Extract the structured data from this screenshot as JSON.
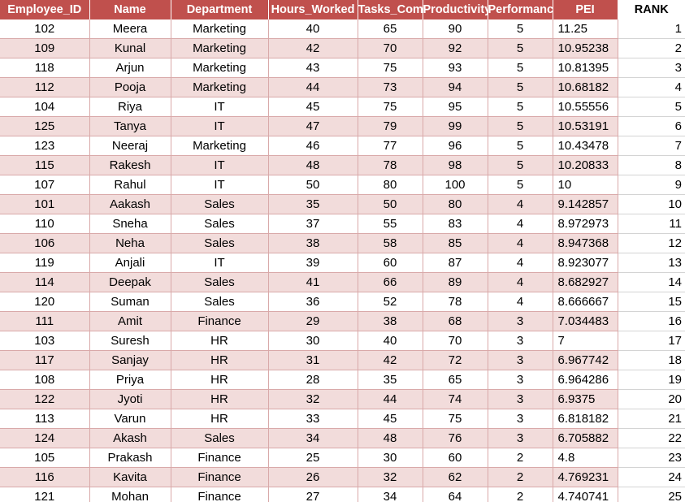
{
  "colors": {
    "header_bg": "#c0504d",
    "band_row": "#f2dcdb",
    "plain_row": "#ffffff"
  },
  "headers": [
    "Employee_ID",
    "Name",
    "Department",
    "Hours_Worked",
    "Tasks_Completed",
    "Productivity_Score",
    "Performance_Rating",
    "PEI",
    "RANK"
  ],
  "rows": [
    [
      "102",
      "Meera",
      "Marketing",
      "40",
      "65",
      "90",
      "5",
      "11.25",
      "1"
    ],
    [
      "109",
      "Kunal",
      "Marketing",
      "42",
      "70",
      "92",
      "5",
      "10.95238",
      "2"
    ],
    [
      "118",
      "Arjun",
      "Marketing",
      "43",
      "75",
      "93",
      "5",
      "10.81395",
      "3"
    ],
    [
      "112",
      "Pooja",
      "Marketing",
      "44",
      "73",
      "94",
      "5",
      "10.68182",
      "4"
    ],
    [
      "104",
      "Riya",
      "IT",
      "45",
      "75",
      "95",
      "5",
      "10.55556",
      "5"
    ],
    [
      "125",
      "Tanya",
      "IT",
      "47",
      "79",
      "99",
      "5",
      "10.53191",
      "6"
    ],
    [
      "123",
      "Neeraj",
      "Marketing",
      "46",
      "77",
      "96",
      "5",
      "10.43478",
      "7"
    ],
    [
      "115",
      "Rakesh",
      "IT",
      "48",
      "78",
      "98",
      "5",
      "10.20833",
      "8"
    ],
    [
      "107",
      "Rahul",
      "IT",
      "50",
      "80",
      "100",
      "5",
      "10",
      "9"
    ],
    [
      "101",
      "Aakash",
      "Sales",
      "35",
      "50",
      "80",
      "4",
      "9.142857",
      "10"
    ],
    [
      "110",
      "Sneha",
      "Sales",
      "37",
      "55",
      "83",
      "4",
      "8.972973",
      "11"
    ],
    [
      "106",
      "Neha",
      "Sales",
      "38",
      "58",
      "85",
      "4",
      "8.947368",
      "12"
    ],
    [
      "119",
      "Anjali",
      "IT",
      "39",
      "60",
      "87",
      "4",
      "8.923077",
      "13"
    ],
    [
      "114",
      "Deepak",
      "Sales",
      "41",
      "66",
      "89",
      "4",
      "8.682927",
      "14"
    ],
    [
      "120",
      "Suman",
      "Sales",
      "36",
      "52",
      "78",
      "4",
      "8.666667",
      "15"
    ],
    [
      "111",
      "Amit",
      "Finance",
      "29",
      "38",
      "68",
      "3",
      "7.034483",
      "16"
    ],
    [
      "103",
      "Suresh",
      "HR",
      "30",
      "40",
      "70",
      "3",
      "7",
      "17"
    ],
    [
      "117",
      "Sanjay",
      "HR",
      "31",
      "42",
      "72",
      "3",
      "6.967742",
      "18"
    ],
    [
      "108",
      "Priya",
      "HR",
      "28",
      "35",
      "65",
      "3",
      "6.964286",
      "19"
    ],
    [
      "122",
      "Jyoti",
      "HR",
      "32",
      "44",
      "74",
      "3",
      "6.9375",
      "20"
    ],
    [
      "113",
      "Varun",
      "HR",
      "33",
      "45",
      "75",
      "3",
      "6.818182",
      "21"
    ],
    [
      "124",
      "Akash",
      "Sales",
      "34",
      "48",
      "76",
      "3",
      "6.705882",
      "22"
    ],
    [
      "105",
      "Prakash",
      "Finance",
      "25",
      "30",
      "60",
      "2",
      "4.8",
      "23"
    ],
    [
      "116",
      "Kavita",
      "Finance",
      "26",
      "32",
      "62",
      "2",
      "4.769231",
      "24"
    ],
    [
      "121",
      "Mohan",
      "Finance",
      "27",
      "34",
      "64",
      "2",
      "4.740741",
      "25"
    ]
  ]
}
